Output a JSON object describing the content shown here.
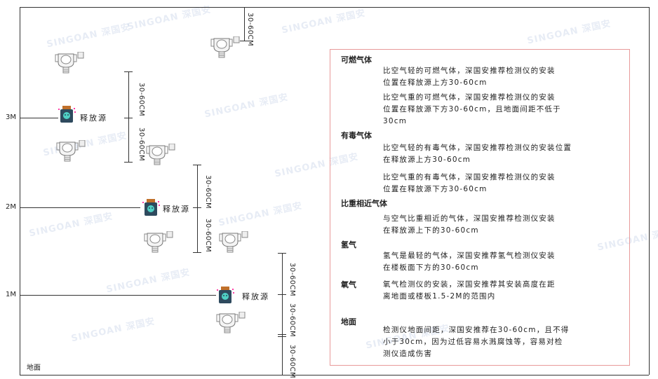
{
  "watermark": "SINGOAN 深国安",
  "levels": [
    "3M",
    "2M",
    "1M"
  ],
  "floor_label": "地面",
  "source_label": "释放源",
  "dimension_label": "30-60CM",
  "colors": {
    "border_box": "#e89a9a",
    "line": "#333333",
    "source_body": "#2e4a5e",
    "source_cap": "#c0702a",
    "source_icon": "#4fd1c5"
  },
  "info": {
    "sections": [
      {
        "title": "可燃气体",
        "paragraphs": [
          "比空气轻的可燃气体，深国安推荐检测仪的安装\n位置在释放源上方30-60cm",
          "比空气重的可燃气体，深国安推荐检测仪的安装\n位置在释放源下方30-60cm，且地面间距不低于\n30cm"
        ]
      },
      {
        "title": "有毒气体",
        "paragraphs": [
          "比空气轻的有毒气体，深国安推荐检测仪的安装位置\n在释放源上方30-60cm",
          "比空气重的有毒气体，深国安推荐检测仪的安装\n位置在释放源下方30-60cm"
        ]
      },
      {
        "title": "比重相近气体",
        "paragraphs": [
          "与空气比重相近的气体，深国安推荐检测仪安装\n在释放源上下的30-60cm"
        ]
      },
      {
        "title": "氢气",
        "paragraphs": [
          "氢气是最轻的气体，深国安推荐氢气检测仪安装\n在楼板面下方的30-60cm"
        ]
      },
      {
        "title": "氧气",
        "paragraphs": [
          "氧气检测仪的安装，深国安推荐其安装高度在距\n离地面或楼板1.5-2M的范围内"
        ]
      },
      {
        "title": "地面",
        "paragraphs": [
          "检测仪地面间距，深国安推荐在30-60cm，且不得\n小于30cm，因为过低容易水溅腐蚀等，容易对检\n测仪造成伤害"
        ]
      }
    ]
  }
}
